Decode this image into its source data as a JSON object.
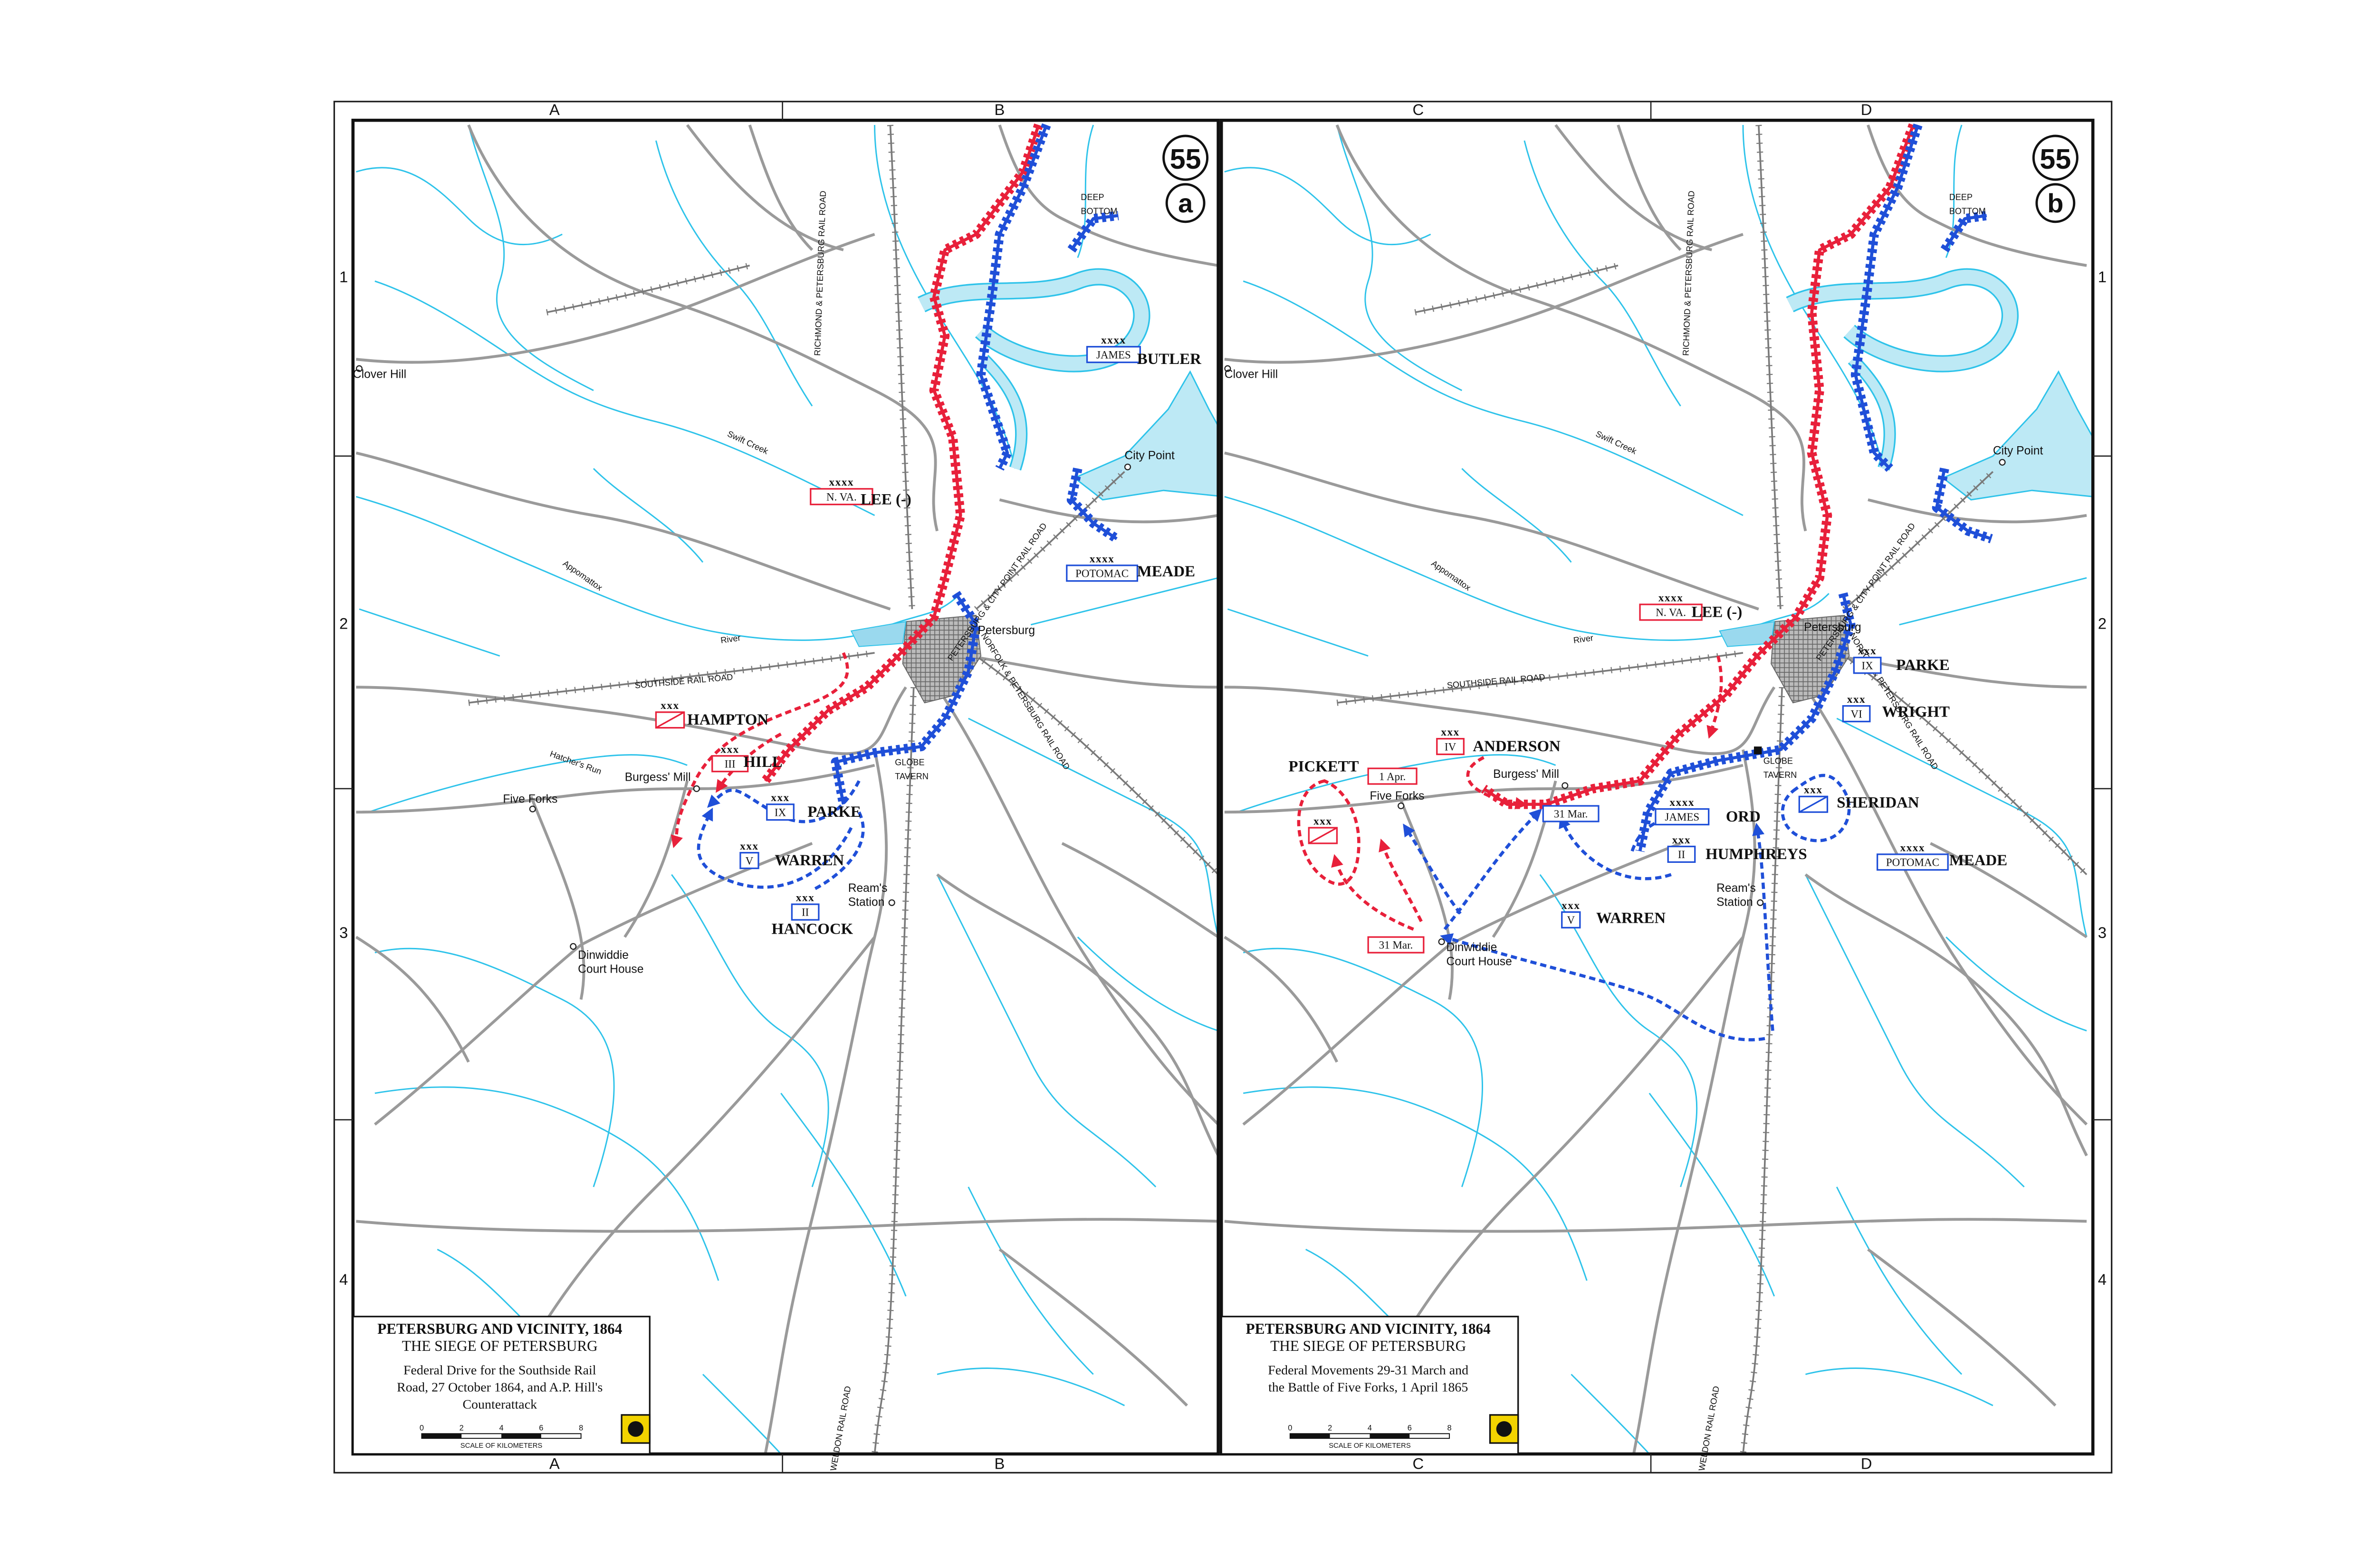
{
  "grid": {
    "columns_top": [
      "A",
      "B",
      "C",
      "D"
    ],
    "columns_bottom": [
      "A",
      "B",
      "C",
      "D"
    ],
    "rows_left": [
      "1",
      "2",
      "3",
      "4"
    ],
    "rows_right": [
      "1",
      "2",
      "3",
      "4"
    ]
  },
  "maps": [
    {
      "plate": "55",
      "panel": "a",
      "places": [
        {
          "lines": [
            "Clover Hill"
          ]
        },
        {
          "lines": [
            "Swift Creek"
          ]
        },
        {
          "lines": [
            "Appomattox"
          ]
        },
        {
          "lines": [
            "River"
          ]
        },
        {
          "lines": [
            "SOUTHSIDE RAIL ROAD"
          ]
        },
        {
          "lines": [
            "RICHMOND & PETERSBURG RAIL ROAD"
          ]
        },
        {
          "lines": [
            "PETERSBURG & CITY POINT RAIL ROAD"
          ]
        },
        {
          "lines": [
            "NORFOLK & PETERSBURG RAIL ROAD"
          ]
        },
        {
          "lines": [
            "Petersburg"
          ]
        },
        {
          "lines": [
            "City Point"
          ]
        },
        {
          "lines": [
            "Five Forks"
          ]
        },
        {
          "lines": [
            "Burgess' Mill"
          ]
        },
        {
          "lines": [
            "Hatcher's Run"
          ]
        },
        {
          "lines": [
            "Dinwiddie",
            "Court House"
          ]
        },
        {
          "lines": [
            "Ream's",
            "Station"
          ]
        },
        {
          "lines": [
            "GLOBE",
            "TAVERN"
          ]
        },
        {
          "lines": [
            "DEEP",
            "BOTTOM"
          ]
        },
        {
          "lines": [
            "WELDON RAIL ROAD"
          ]
        }
      ],
      "units": [
        {
          "side": "Union",
          "echelon": "xxxx",
          "designation": "JAMES",
          "commander": "BUTLER"
        },
        {
          "side": "Confederate",
          "echelon": "xxxx",
          "designation": "N. VA.",
          "commander": "LEE (-)"
        },
        {
          "side": "Union",
          "echelon": "xxxx",
          "designation": "POTOMAC",
          "commander": "MEADE"
        },
        {
          "side": "Confederate",
          "echelon": "xxx",
          "commander": "HAMPTON"
        },
        {
          "side": "Confederate",
          "echelon": "xxx",
          "designation": "III",
          "commander": "HILL"
        },
        {
          "side": "Union",
          "echelon": "xxx",
          "designation": "IX",
          "commander": "PARKE"
        },
        {
          "side": "Union",
          "echelon": "xxx",
          "designation": "V",
          "commander": "WARREN"
        },
        {
          "side": "Union",
          "echelon": "xxx",
          "designation": "II",
          "commander": "HANCOCK"
        }
      ],
      "dates": [],
      "title": {
        "heading": "PETERSBURG AND VICINITY, 1864",
        "subtitle": "THE SIEGE OF PETERSBURG",
        "caption": [
          "Federal Drive for the Southside Rail",
          "Road, 27 October 1864, and A.P. Hill's",
          "Counterattack"
        ]
      },
      "scale": {
        "ticks": [
          "0",
          "2",
          "4",
          "6",
          "8"
        ],
        "label": "SCALE OF KILOMETERS"
      }
    },
    {
      "plate": "55",
      "panel": "b",
      "places": [
        {
          "lines": [
            "Clover Hill"
          ]
        },
        {
          "lines": [
            "Swift Creek"
          ]
        },
        {
          "lines": [
            "Appomattox"
          ]
        },
        {
          "lines": [
            "River"
          ]
        },
        {
          "lines": [
            "SOUTHSIDE RAIL ROAD"
          ]
        },
        {
          "lines": [
            "RICHMOND & PETERSBURG RAIL ROAD"
          ]
        },
        {
          "lines": [
            "PETERSBURG & CITY POINT RAIL ROAD"
          ]
        },
        {
          "lines": [
            "NORFOLK & PETERSBURG RAIL ROAD"
          ]
        },
        {
          "lines": [
            "Petersburg"
          ]
        },
        {
          "lines": [
            "City Point"
          ]
        },
        {
          "lines": [
            "Five Forks"
          ]
        },
        {
          "lines": [
            "Burgess' Mill"
          ]
        },
        {
          "lines": [
            "Dinwiddie",
            "Court House"
          ]
        },
        {
          "lines": [
            "Ream's",
            "Station"
          ]
        },
        {
          "lines": [
            "GLOBE",
            "TAVERN"
          ]
        },
        {
          "lines": [
            "DEEP",
            "BOTTOM"
          ]
        },
        {
          "lines": [
            "WELDON RAIL ROAD"
          ]
        }
      ],
      "units": [
        {
          "side": "Confederate",
          "echelon": "xxxx",
          "designation": "N. VA.",
          "commander": "LEE (-)"
        },
        {
          "side": "Union",
          "echelon": "xxx",
          "designation": "IX",
          "commander": "PARKE"
        },
        {
          "side": "Union",
          "echelon": "xxx",
          "designation": "VI",
          "commander": "WRIGHT"
        },
        {
          "side": "Confederate",
          "echelon": "xxx",
          "designation": "IV",
          "commander": "ANDERSON"
        },
        {
          "side": "Confederate",
          "echelon": "xxx",
          "commander": "PICKETT"
        },
        {
          "side": "Union",
          "echelon": "xxxx",
          "designation": "JAMES",
          "commander": "ORD"
        },
        {
          "side": "Union",
          "echelon": "xxx",
          "designation": "II",
          "commander": "HUMPHREYS"
        },
        {
          "side": "Union",
          "echelon": "xxx",
          "commander": "SHERIDAN"
        },
        {
          "side": "Union",
          "echelon": "xxxx",
          "designation": "POTOMAC",
          "commander": "MEADE"
        },
        {
          "side": "Union",
          "echelon": "xxx",
          "designation": "V",
          "commander": "WARREN"
        }
      ],
      "dates": [
        {
          "side": "Confederate",
          "label": "1 Apr."
        },
        {
          "side": "Union",
          "label": "31 Mar."
        },
        {
          "side": "Confederate",
          "label": "31 Mar."
        }
      ],
      "title": {
        "heading": "PETERSBURG AND VICINITY, 1864",
        "subtitle": "THE SIEGE OF PETERSBURG",
        "caption": [
          "Federal Movements 29-31 March and",
          "the Battle of Five Forks, 1 April 1865"
        ]
      },
      "scale": {
        "ticks": [
          "0",
          "2",
          "4",
          "6",
          "8"
        ],
        "label": "SCALE OF KILOMETERS"
      }
    }
  ]
}
